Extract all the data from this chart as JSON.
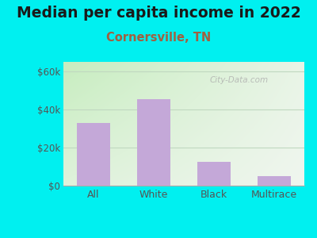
{
  "title": "Median per capita income in 2022",
  "subtitle": "Cornersville, TN",
  "categories": [
    "All",
    "White",
    "Black",
    "Multirace"
  ],
  "values": [
    33000,
    45500,
    12500,
    5000
  ],
  "bar_color": "#c4a8d8",
  "title_fontsize": 13.5,
  "subtitle_fontsize": 10.5,
  "subtitle_color": "#a06040",
  "title_color": "#1a1a1a",
  "bg_outer": "#00f0f0",
  "yticks": [
    0,
    20000,
    40000,
    60000
  ],
  "ytick_labels": [
    "$0",
    "$20k",
    "$40k",
    "$60k"
  ],
  "ylim": [
    0,
    65000
  ],
  "watermark": "City-Data.com",
  "tick_label_color": "#555555",
  "grid_color": "#c0d8c0",
  "gradient_left": "#c8eec0",
  "gradient_right": "#f8f8f8"
}
